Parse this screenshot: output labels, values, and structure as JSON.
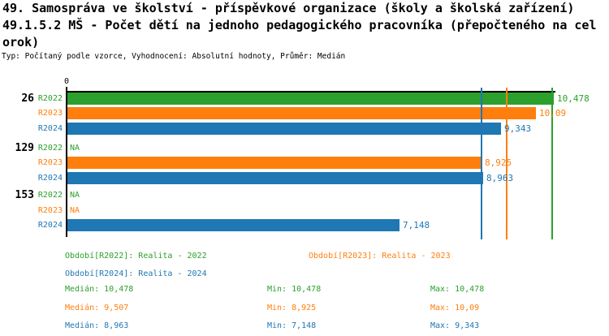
{
  "header": {
    "title_line1": "49. Samospráva ve školství - příspěvkové organizace (školy a školská zařízení)",
    "title_line2": "49.1.5.2 MŠ - Počet dětí na jednoho pedagogického pracovníka (přepočteného na cel",
    "title_line3": "orok)",
    "meta": "Typ: Počítaný podle vzorce, Vyhodnocení: Absolutní hodnoty, Průměr: Medián"
  },
  "colors": {
    "r2022": "#2ca02c",
    "r2023": "#ff7f0e",
    "r2024": "#1f77b4",
    "axis": "#000000"
  },
  "chart_data": {
    "type": "bar",
    "orientation": "horizontal",
    "x_axis": {
      "tick_label": "0",
      "min": 0,
      "max": 10.478
    },
    "grid": false,
    "na_label": "NA",
    "groups": [
      {
        "label": "26",
        "bars": [
          {
            "series": "R2022",
            "value": 10.478,
            "display": "10,478",
            "color_key": "r2022"
          },
          {
            "series": "R2023",
            "value": 10.09,
            "display": "10,09",
            "color_key": "r2023"
          },
          {
            "series": "R2024",
            "value": 9.343,
            "display": "9,343",
            "color_key": "r2024"
          }
        ]
      },
      {
        "label": "129",
        "bars": [
          {
            "series": "R2022",
            "value": null,
            "display": "NA",
            "color_key": "r2022"
          },
          {
            "series": "R2023",
            "value": 8.925,
            "display": "8,925",
            "color_key": "r2023"
          },
          {
            "series": "R2024",
            "value": 8.963,
            "display": "8,963",
            "color_key": "r2024"
          }
        ]
      },
      {
        "label": "153",
        "bars": [
          {
            "series": "R2022",
            "value": null,
            "display": "NA",
            "color_key": "r2022"
          },
          {
            "series": "R2023",
            "value": null,
            "display": "NA",
            "color_key": "r2023"
          },
          {
            "series": "R2024",
            "value": 7.148,
            "display": "7,148",
            "color_key": "r2024"
          }
        ]
      }
    ],
    "median_lines": [
      {
        "value": 10.478,
        "color_key": "r2022"
      },
      {
        "value": 9.507,
        "color_key": "r2023"
      },
      {
        "value": 8.963,
        "color_key": "r2024"
      }
    ]
  },
  "legend": {
    "items": [
      {
        "label": "Období[R2022]: Realita - 2022",
        "color_key": "r2022"
      },
      {
        "label": "Období[R2023]: Realita - 2023",
        "color_key": "r2023"
      },
      {
        "label": "Období[R2024]: Realita - 2024",
        "color_key": "r2024"
      }
    ]
  },
  "stats": {
    "rows": [
      {
        "median": "Medián: 10,478",
        "min": "Min: 10,478",
        "max": "Max: 10,478",
        "color_key": "r2022"
      },
      {
        "median": "Medián: 9,507",
        "min": "Min: 8,925",
        "max": "Max: 10,09",
        "color_key": "r2023"
      },
      {
        "median": "Medián: 8,963",
        "min": "Min: 7,148",
        "max": "Max: 9,343",
        "color_key": "r2024"
      }
    ]
  }
}
